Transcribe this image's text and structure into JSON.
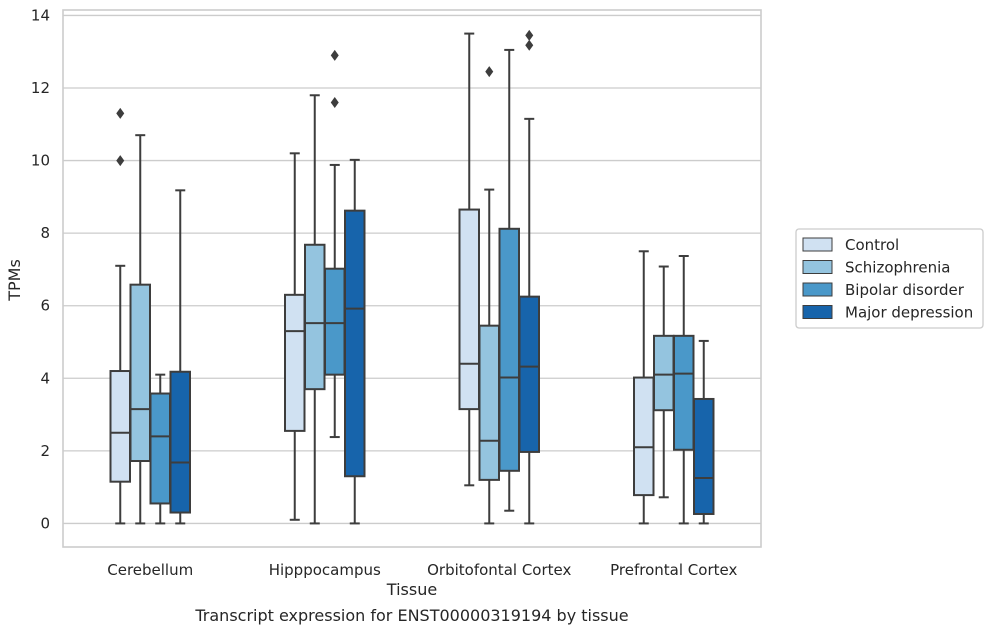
{
  "chart_data": {
    "type": "boxplot",
    "title": "",
    "caption": "Transcript expression for ENST00000319194 by tissue",
    "xlabel": "Tissue",
    "ylabel": "TPMs",
    "ylim": [
      -0.65,
      14.15
    ],
    "yticks": [
      0,
      2,
      4,
      6,
      8,
      10,
      12,
      14
    ],
    "grid": "horizontal",
    "legend_position": "right",
    "categories": [
      "Cerebellum",
      "Hipppocampus",
      "Orbitofontal Cortex",
      "Prefrontal Cortex"
    ],
    "series": [
      {
        "name": "Control",
        "color": "#d0e1f2",
        "boxes": [
          {
            "whislo": 0,
            "q1": 1.15,
            "median": 2.5,
            "q3": 4.2,
            "whishi": 7.1,
            "fliers": [
              10.0,
              11.3
            ]
          },
          {
            "whislo": 0.1,
            "q1": 2.55,
            "median": 5.3,
            "q3": 6.3,
            "whishi": 10.2,
            "fliers": []
          },
          {
            "whislo": 1.05,
            "q1": 3.15,
            "median": 4.4,
            "q3": 8.65,
            "whishi": 13.5,
            "fliers": []
          },
          {
            "whislo": 0,
            "q1": 0.78,
            "median": 2.1,
            "q3": 4.02,
            "whishi": 7.5,
            "fliers": []
          }
        ]
      },
      {
        "name": "Schizophrenia",
        "color": "#94c4df",
        "boxes": [
          {
            "whislo": 0,
            "q1": 1.72,
            "median": 3.15,
            "q3": 6.58,
            "whishi": 10.7,
            "fliers": []
          },
          {
            "whislo": 0,
            "q1": 3.7,
            "median": 5.52,
            "q3": 7.68,
            "whishi": 11.8,
            "fliers": []
          },
          {
            "whislo": 0,
            "q1": 1.2,
            "median": 2.28,
            "q3": 5.45,
            "whishi": 9.2,
            "fliers": [
              12.45
            ]
          },
          {
            "whislo": 0.72,
            "q1": 3.12,
            "median": 4.1,
            "q3": 5.17,
            "whishi": 7.08,
            "fliers": []
          }
        ]
      },
      {
        "name": "Bipolar disorder",
        "color": "#4a98c9",
        "boxes": [
          {
            "whislo": 0,
            "q1": 0.55,
            "median": 2.4,
            "q3": 3.58,
            "whishi": 4.1,
            "fliers": []
          },
          {
            "whislo": 2.38,
            "q1": 4.1,
            "median": 5.52,
            "q3": 7.02,
            "whishi": 9.88,
            "fliers": [
              11.6,
              12.9
            ]
          },
          {
            "whislo": 0.35,
            "q1": 1.45,
            "median": 4.02,
            "q3": 8.12,
            "whishi": 13.05,
            "fliers": []
          },
          {
            "whislo": 0,
            "q1": 2.03,
            "median": 4.13,
            "q3": 5.17,
            "whishi": 7.37,
            "fliers": []
          }
        ]
      },
      {
        "name": "Major depression",
        "color": "#1764ab",
        "boxes": [
          {
            "whislo": 0,
            "q1": 0.3,
            "median": 1.68,
            "q3": 4.18,
            "whishi": 9.18,
            "fliers": []
          },
          {
            "whislo": 0,
            "q1": 1.3,
            "median": 5.92,
            "q3": 8.62,
            "whishi": 10.02,
            "fliers": []
          },
          {
            "whislo": 0,
            "q1": 1.97,
            "median": 4.32,
            "q3": 6.25,
            "whishi": 11.15,
            "fliers": [
              13.18,
              13.45
            ]
          },
          {
            "whislo": 0,
            "q1": 0.26,
            "median": 1.25,
            "q3": 3.43,
            "whishi": 5.03,
            "fliers": []
          }
        ]
      }
    ]
  }
}
